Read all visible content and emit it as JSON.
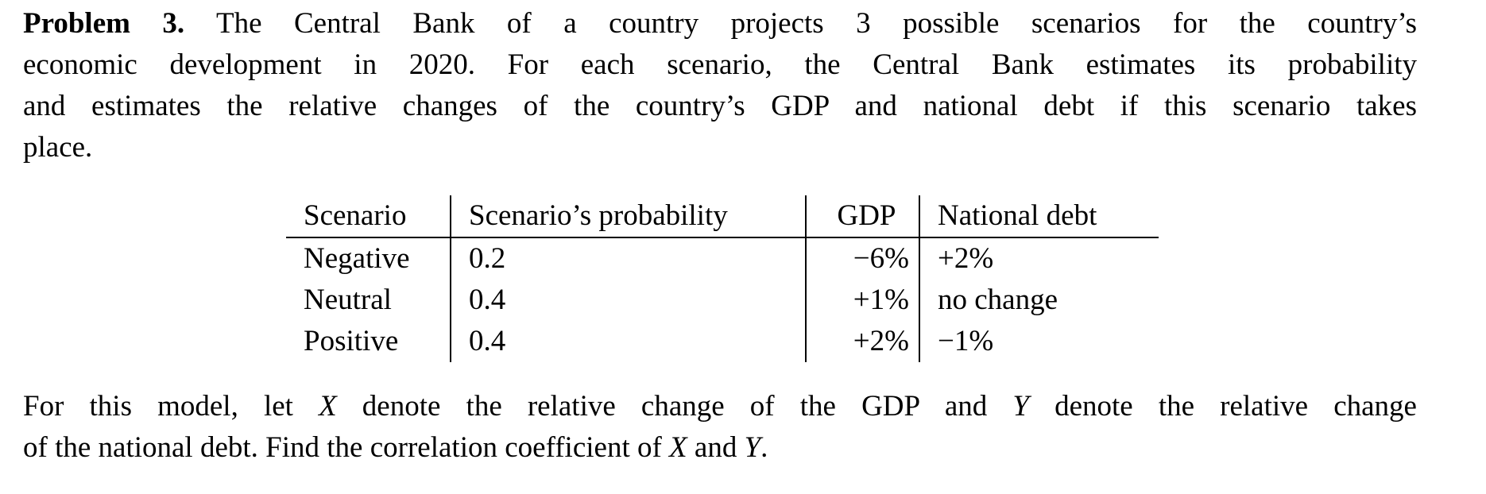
{
  "problem": {
    "label": "Problem 3.",
    "intro_lines": [
      " The Central Bank of a country projects 3 possible scenarios for the country’s",
      "economic development in 2020.  For each scenario, the Central Bank estimates its probability",
      "and estimates the relative changes of the country’s GDP and national debt if this scenario takes",
      "place."
    ],
    "table": {
      "header": [
        "Scenario",
        "Scenario’s probability",
        "GDP",
        "National debt"
      ],
      "rows": [
        [
          "Negative",
          "0.2",
          "−6%",
          "+2%"
        ],
        [
          "Neutral",
          "0.4",
          "+1%",
          "no change"
        ],
        [
          "Positive",
          "0.4",
          "+2%",
          "−1%"
        ]
      ]
    },
    "question_lines": [
      [
        "For this model, let ",
        "X",
        " denote the relative change of the GDP and ",
        "Y",
        " denote the relative change"
      ],
      [
        "of the national debt.  Find the correlation coefficient of ",
        "X",
        " and ",
        "Y",
        "."
      ]
    ]
  }
}
